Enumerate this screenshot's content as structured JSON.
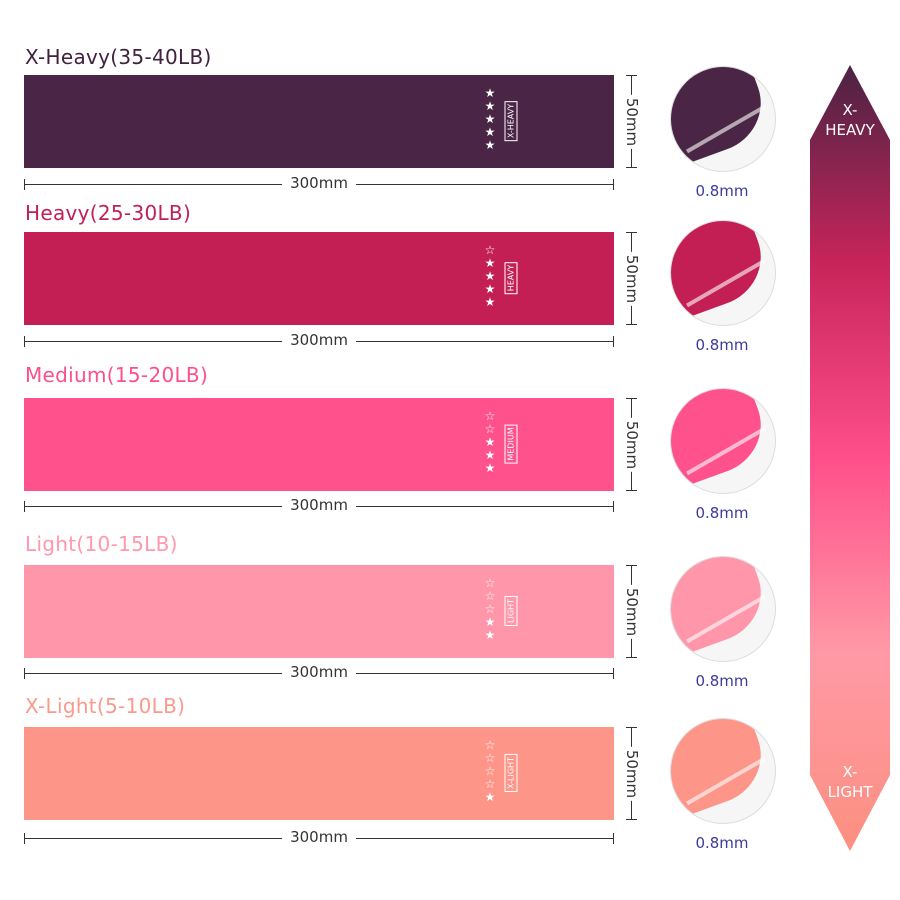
{
  "bands": [
    {
      "title": "X-Heavy(35-40LB)",
      "title_color": "#3f2140",
      "color": "#4a2545",
      "filled_stars": 5,
      "total_stars": 5,
      "level_tag": "X-HEAVY",
      "width": "300mm",
      "height": "50mm",
      "thickness": "0.8mm"
    },
    {
      "title": "Heavy(25-30LB)",
      "title_color": "#c21f55",
      "color": "#c41f55",
      "filled_stars": 4,
      "total_stars": 5,
      "level_tag": "HEAVY",
      "width": "300mm",
      "height": "50mm",
      "thickness": "0.8mm"
    },
    {
      "title": "Medium(15-20LB)",
      "title_color": "#ff4f8a",
      "color": "#ff518b",
      "filled_stars": 3,
      "total_stars": 5,
      "level_tag": "MEDIUM",
      "width": "300mm",
      "height": "50mm",
      "thickness": "0.8mm"
    },
    {
      "title": "Light(10-15LB)",
      "title_color": "#ff98ae",
      "color": "#ff96aa",
      "filled_stars": 2,
      "total_stars": 5,
      "level_tag": "LIGHT",
      "width": "300mm",
      "height": "50mm",
      "thickness": "0.8mm"
    },
    {
      "title": "X-Light(5-10LB)",
      "title_color": "#f99a8c",
      "color": "#fd9589",
      "filled_stars": 1,
      "total_stars": 5,
      "level_tag": "X-LIGHT",
      "width": "300mm",
      "height": "50mm",
      "thickness": "0.8mm"
    }
  ],
  "scale_arrow": {
    "top_label": "X-\nHEAVY",
    "bottom_label": "X-\nLIGHT",
    "gradient": [
      "#4a2343",
      "#c7245a",
      "#ff4f8b",
      "#ff9aa6",
      "#fb8f80"
    ]
  }
}
